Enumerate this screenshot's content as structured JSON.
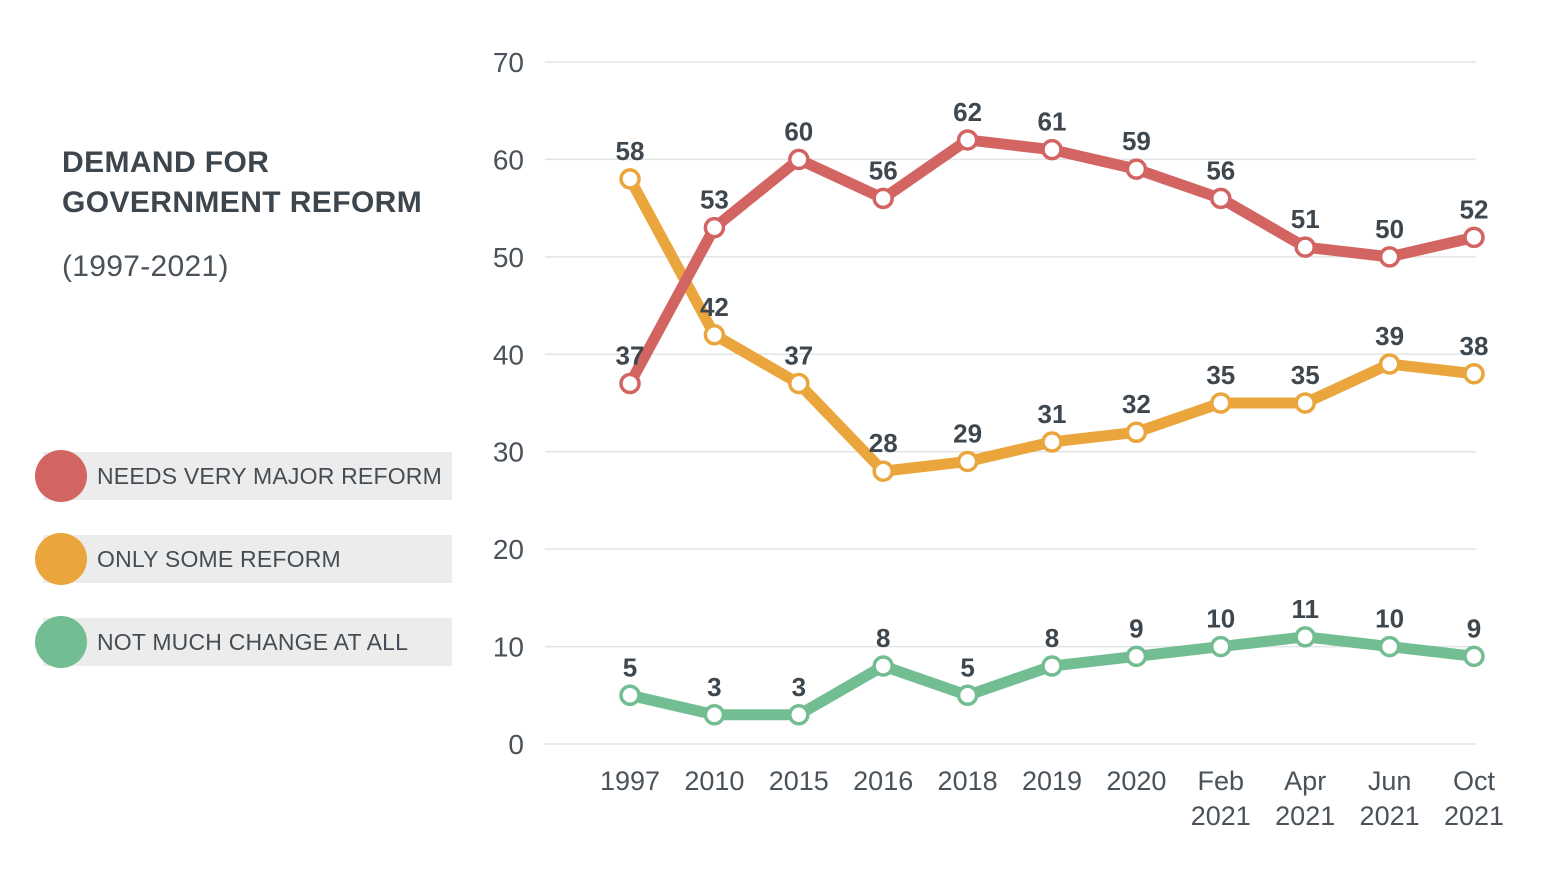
{
  "header": {
    "title": "DEMAND FOR GOVERNMENT REFORM",
    "subtitle": "(1997-2021)"
  },
  "legend": {
    "items": [
      {
        "label": "NEEDS VERY MAJOR REFORM",
        "color": "#d26462"
      },
      {
        "label": "ONLY SOME REFORM",
        "color": "#eaa63c"
      },
      {
        "label": "NOT MUCH CHANGE AT ALL",
        "color": "#72bd92"
      }
    ]
  },
  "chart_data": {
    "type": "line",
    "title": "DEMAND FOR GOVERNMENT REFORM (1997-2021)",
    "categories": [
      "1997",
      "2010",
      "2015",
      "2016",
      "2018",
      "2019",
      "2020",
      "Feb 2021",
      "Apr 2021",
      "Jun 2021",
      "Oct 2021"
    ],
    "series": [
      {
        "name": "NEEDS VERY MAJOR REFORM",
        "color": "#d26462",
        "values": [
          37,
          53,
          60,
          56,
          62,
          61,
          59,
          56,
          51,
          50,
          52
        ]
      },
      {
        "name": "ONLY SOME REFORM",
        "color": "#eaa63c",
        "values": [
          58,
          42,
          37,
          28,
          29,
          31,
          32,
          35,
          35,
          39,
          38
        ]
      },
      {
        "name": "NOT MUCH CHANGE AT ALL",
        "color": "#72bd92",
        "values": [
          5,
          3,
          3,
          8,
          5,
          8,
          9,
          10,
          11,
          10,
          9
        ]
      }
    ],
    "xlabel": "",
    "ylabel": "",
    "ylim": [
      0,
      70
    ],
    "yticks": [
      0,
      10,
      20,
      30,
      40,
      50,
      60,
      70
    ],
    "grid": true,
    "data_labels": true,
    "legend_position": "left",
    "marker": "white-circle"
  },
  "colors": {
    "background": "#ffffff",
    "gridline": "#e3e4e5",
    "axis_text": "#4a525a",
    "data_label_text": "#3f474e",
    "title_text": "#3d454d",
    "legend_band": "#ececec",
    "marker_fill": "#ffffff"
  }
}
